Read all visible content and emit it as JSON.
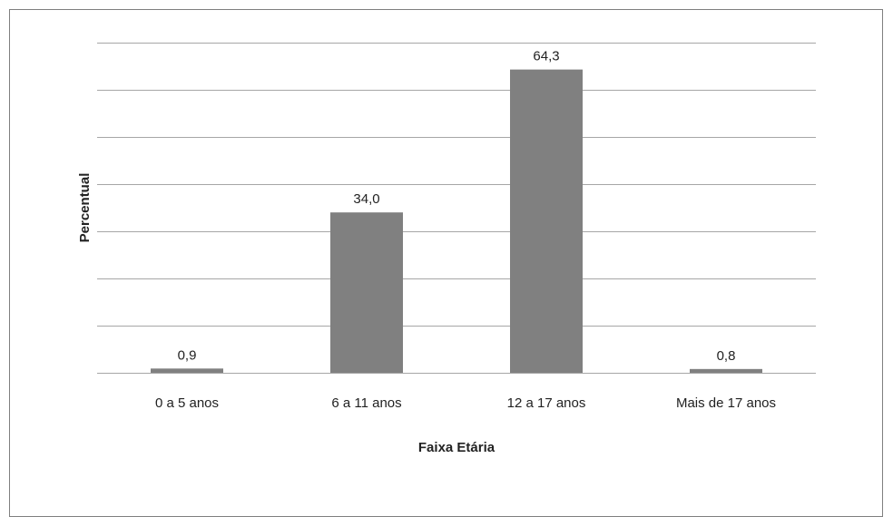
{
  "chart_data": {
    "type": "bar",
    "title": "",
    "xlabel": "Faixa Etária",
    "ylabel": "Percentual",
    "categories": [
      "0 a 5 anos",
      "6 a 11 anos",
      "12 a 17 anos",
      "Mais de 17 anos"
    ],
    "values": [
      0.9,
      34.0,
      64.3,
      0.8
    ],
    "data_labels": [
      "0,9",
      "34,0",
      "64,3",
      "0,8"
    ],
    "ylim": [
      0,
      70
    ],
    "y_tick_step": 10,
    "y_tick_labels_shown": false,
    "grid": true,
    "legend": "none",
    "colors": {
      "bar": "#808080",
      "grid": "#a6a6a6",
      "frame": "#7f7f7f"
    }
  }
}
